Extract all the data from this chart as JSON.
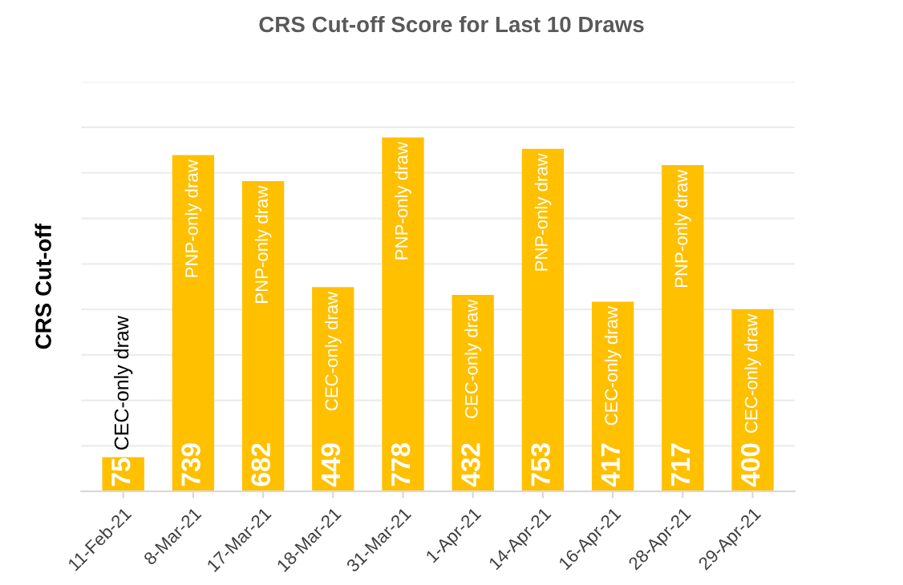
{
  "chart_data": {
    "type": "bar",
    "title": "CRS Cut-off Score for Last 10 Draws",
    "ylabel": "CRS Cut-off",
    "categories": [
      "11-Feb-21",
      "8-Mar-21",
      "17-Mar-21",
      "18-Mar-21",
      "31-Mar-21",
      "1-Apr-21",
      "14-Apr-21",
      "16-Apr-21",
      "28-Apr-21",
      "29-Apr-21"
    ],
    "values": [
      75,
      739,
      682,
      449,
      778,
      432,
      753,
      417,
      717,
      400
    ],
    "color": "#ffc000",
    "data_labels": true,
    "ylim": [
      0,
      900
    ],
    "yticks": [
      {
        "value": 0,
        "label": null
      },
      {
        "value": 100,
        "label": null
      },
      {
        "value": 200,
        "label": null
      },
      {
        "value": 300,
        "label": null
      },
      {
        "value": 400,
        "label": null
      },
      {
        "value": 500,
        "label": null
      },
      {
        "value": 600,
        "label": null
      },
      {
        "value": 700,
        "label": null
      },
      {
        "value": 800,
        "label": null
      },
      {
        "value": 900,
        "label": null
      }
    ],
    "tick_labels": "x",
    "grid": "y",
    "annotations": [
      {
        "text": "CEC-only draw",
        "x": "11-Feb-21",
        "y": 75
      },
      {
        "text": "PNP-only draw",
        "x": "8-Mar-21",
        "y": 739
      },
      {
        "text": "PNP-only draw",
        "x": "17-Mar-21",
        "y": 682
      },
      {
        "text": "CEC-only draw",
        "x": "18-Mar-21",
        "y": 449
      },
      {
        "text": "PNP-only draw",
        "x": "31-Mar-21",
        "y": 778
      },
      {
        "text": "CEC-only draw",
        "x": "1-Apr-21",
        "y": 432
      },
      {
        "text": "PNP-only draw",
        "x": "14-Apr-21",
        "y": 753
      },
      {
        "text": "CEC-only draw",
        "x": "16-Apr-21",
        "y": 417
      },
      {
        "text": "PNP-only draw",
        "x": "28-Apr-21",
        "y": 717
      },
      {
        "text": "CEC-only draw",
        "x": "29-Apr-21",
        "y": 400
      }
    ]
  }
}
